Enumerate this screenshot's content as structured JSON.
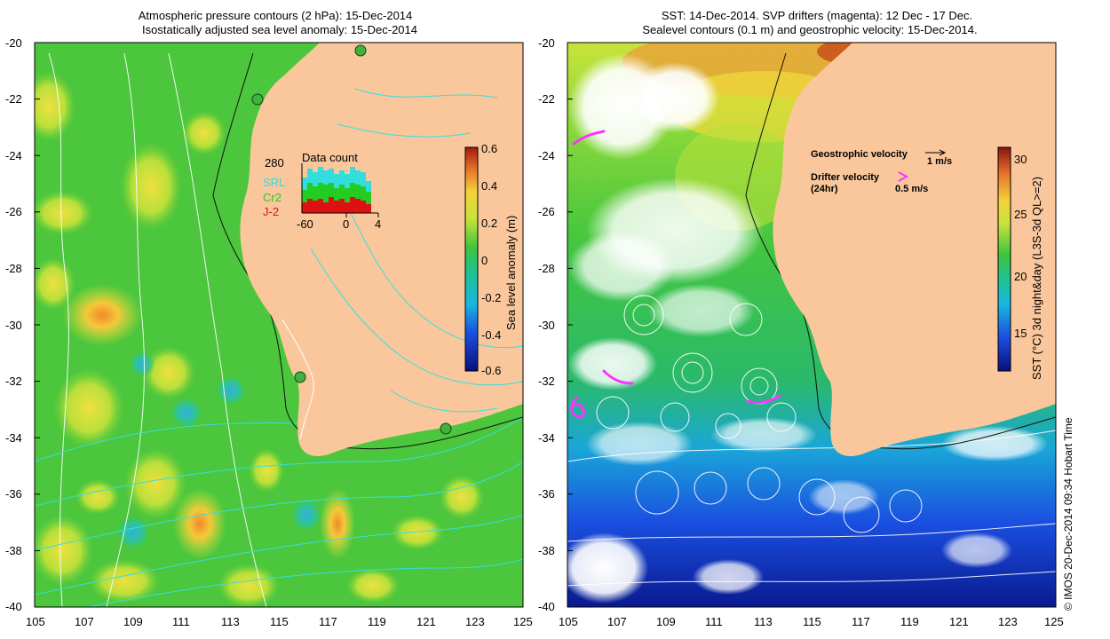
{
  "left_panel": {
    "title_line1": "Atmospheric pressure contours (2 hPa): 15-Dec-2014",
    "title_line2": "Isostatically adjusted sea level anomaly: 15-Dec-2014",
    "colorbar_label": "Sea level anomaly (m)",
    "colorbar_ticks": [
      "0.6",
      "0.4",
      "0.2",
      "0",
      "-0.2",
      "-0.4",
      "-0.6"
    ],
    "inset": {
      "title": "Data count",
      "ymax_label": "280",
      "x_ticks": [
        "-60",
        "0",
        "4"
      ],
      "legend": [
        {
          "label": "SRL",
          "color": "#33dddd"
        },
        {
          "label": "Cr2",
          "color": "#22cc22"
        },
        {
          "label": "J-2",
          "color": "#dd1111"
        }
      ]
    }
  },
  "right_panel": {
    "title_line1": "SST: 14-Dec-2014. SVP drifters (magenta): 12 Dec - 17 Dec.",
    "title_line2": "Sealevel contours (0.1 m) and geostrophic velocity: 15-Dec-2014.",
    "colorbar_label": "SST (°C) 3d night&day (L3S-3d QL>=2)",
    "colorbar_ticks": [
      "30",
      "25",
      "20",
      "15"
    ],
    "legend_geo_label": "Geostrophic velocity",
    "legend_geo_value": "1 m/s",
    "legend_drifter_label1": "Drifter velocity",
    "legend_drifter_label2": "(24hr)",
    "legend_drifter_value": "0.5 m/s",
    "drifter_color": "#ff33ff"
  },
  "axes": {
    "y_ticks": [
      "-20",
      "-22",
      "-24",
      "-26",
      "-28",
      "-30",
      "-32",
      "-34",
      "-36",
      "-38",
      "-40"
    ],
    "x_ticks": [
      "105",
      "107",
      "109",
      "111",
      "113",
      "115",
      "117",
      "119",
      "121",
      "123",
      "125"
    ]
  },
  "credit": "© IMOS 20-Dec-2014 09:34 Hobart Time",
  "colors": {
    "land": "#f9c79b",
    "ocean_green": "#3ec43e",
    "ocean_blue": "#1a3fd0"
  }
}
